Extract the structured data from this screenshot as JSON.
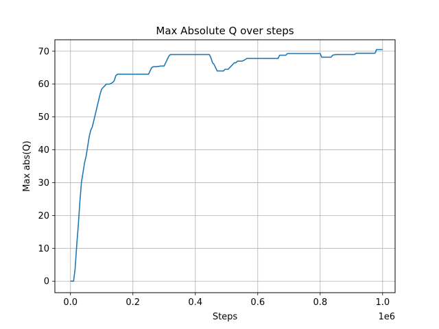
{
  "chart_data": {
    "type": "line",
    "title": "Max Absolute Q over steps",
    "xlabel": "Steps",
    "ylabel": "Max abs(Q)",
    "x_offset_label": "1e6",
    "xlim": [
      -50000,
      1040000
    ],
    "ylim": [
      -3.5,
      73.5
    ],
    "xticks": [
      0,
      200000,
      400000,
      600000,
      800000,
      1000000
    ],
    "xtick_labels": [
      "0.0",
      "0.2",
      "0.4",
      "0.6",
      "0.8",
      "1.0"
    ],
    "yticks": [
      0,
      10,
      20,
      30,
      40,
      50,
      60,
      70
    ],
    "ytick_labels": [
      "0",
      "10",
      "20",
      "30",
      "40",
      "50",
      "60",
      "70"
    ],
    "grid": true,
    "line_color": "#1f77b4",
    "series": [
      {
        "x": [
          0,
          10000,
          15000,
          20000,
          25000,
          30000,
          35000,
          40000,
          45000,
          50000,
          55000,
          60000,
          65000,
          70000,
          75000,
          80000,
          85000,
          90000,
          95000,
          100000,
          105000,
          110000,
          115000,
          120000,
          125000,
          130000,
          135000,
          140000,
          145000,
          150000,
          160000,
          170000,
          178000,
          182000,
          185000,
          200000,
          250000,
          255000,
          260000,
          265000,
          270000,
          275000,
          290000,
          300000,
          305000,
          310000,
          315000,
          320000,
          325000,
          330000,
          380000,
          400000,
          420000,
          435000,
          445000,
          450000,
          455000,
          460000,
          465000,
          470000,
          475000,
          490000,
          495000,
          505000,
          510000,
          520000,
          525000,
          530000,
          535000,
          540000,
          550000,
          555000,
          560000,
          565000,
          570000,
          575000,
          580000,
          600000,
          620000,
          640000,
          665000,
          670000,
          680000,
          690000,
          695000,
          700000,
          720000,
          750000,
          780000,
          795000,
          800000,
          805000,
          830000,
          835000,
          840000,
          850000,
          870000,
          900000,
          910000,
          915000,
          930000,
          960000,
          975000,
          978000,
          980000,
          990000,
          1000000
        ],
        "y": [
          0,
          0,
          4,
          11,
          17,
          24,
          30,
          33,
          36,
          38,
          41,
          44,
          46,
          47,
          49,
          51,
          53,
          55,
          57,
          58.5,
          59,
          59.5,
          60,
          60,
          60,
          60.2,
          60.5,
          61,
          62.5,
          63,
          63,
          63,
          63,
          63,
          63,
          63,
          63,
          64,
          65,
          65.3,
          65.3,
          65.3,
          65.5,
          65.5,
          66.5,
          67.5,
          68.5,
          69,
          69,
          69,
          69,
          69,
          69,
          69,
          69,
          68,
          66.5,
          66,
          65,
          64,
          64,
          64,
          64.5,
          64.5,
          65,
          66,
          66.5,
          66.5,
          67,
          67,
          67,
          67.2,
          67.5,
          67.8,
          67.8,
          67.8,
          67.8,
          67.8,
          67.8,
          67.8,
          67.8,
          68.8,
          68.8,
          68.8,
          69.3,
          69.3,
          69.3,
          69.3,
          69.3,
          69.3,
          69.3,
          68.2,
          68.2,
          68.2,
          68.8,
          69,
          69,
          69,
          69,
          69.4,
          69.4,
          69.4,
          69.4,
          69.8,
          70.5,
          70.5,
          70.5
        ]
      }
    ]
  }
}
